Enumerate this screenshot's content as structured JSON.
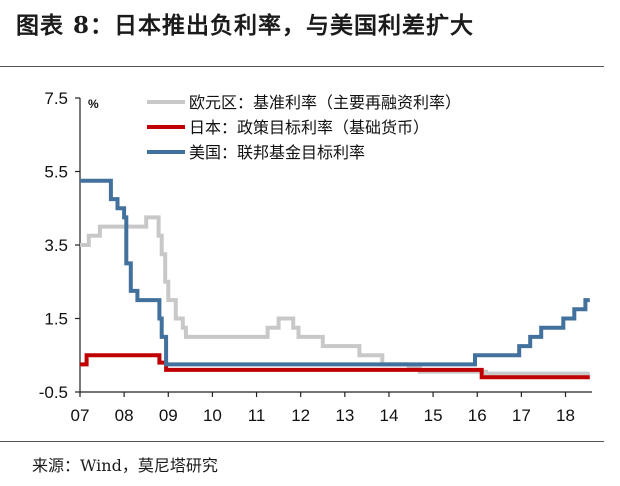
{
  "header": {
    "title": "图表 8：日本推出负利率，与美国利差扩大"
  },
  "footer": {
    "source": "来源：Wind，莫尼塔研究"
  },
  "chart_data": {
    "type": "line",
    "unit": "%",
    "ylim": [
      -0.5,
      7.5
    ],
    "yticks": [
      "7.5",
      "5.5",
      "3.5",
      "1.5",
      "-0.5"
    ],
    "yticks_values": [
      7.5,
      5.5,
      3.5,
      1.5,
      -0.5
    ],
    "xlim": [
      2007,
      2018.6
    ],
    "xticks": [
      "07",
      "08",
      "09",
      "10",
      "11",
      "12",
      "13",
      "14",
      "15",
      "16",
      "17",
      "18"
    ],
    "xticks_values": [
      2007,
      2008,
      2009,
      2010,
      2011,
      2012,
      2013,
      2014,
      2015,
      2016,
      2017,
      2018
    ],
    "legend_position": "top-right",
    "grid": false,
    "series": [
      {
        "name": "欧元区：基准利率（主要再融资利率）",
        "color": "#c8c8c8",
        "step": true,
        "points": [
          [
            2007.0,
            3.5
          ],
          [
            2007.2,
            3.75
          ],
          [
            2007.45,
            4.0
          ],
          [
            2008.5,
            4.25
          ],
          [
            2008.78,
            3.75
          ],
          [
            2008.85,
            3.25
          ],
          [
            2008.93,
            2.5
          ],
          [
            2009.0,
            2.0
          ],
          [
            2009.17,
            1.5
          ],
          [
            2009.33,
            1.25
          ],
          [
            2009.4,
            1.0
          ],
          [
            2011.25,
            1.25
          ],
          [
            2011.5,
            1.5
          ],
          [
            2011.83,
            1.25
          ],
          [
            2011.95,
            1.0
          ],
          [
            2012.5,
            0.75
          ],
          [
            2013.33,
            0.5
          ],
          [
            2013.85,
            0.25
          ],
          [
            2014.45,
            0.15
          ],
          [
            2014.7,
            0.05
          ],
          [
            2016.2,
            0.0
          ],
          [
            2018.55,
            0.0
          ]
        ]
      },
      {
        "name": "日本：政策目标利率（基础货币）",
        "color": "#c00000",
        "step": true,
        "points": [
          [
            2007.0,
            0.25
          ],
          [
            2007.15,
            0.5
          ],
          [
            2008.8,
            0.3
          ],
          [
            2008.95,
            0.1
          ],
          [
            2016.1,
            -0.1
          ],
          [
            2018.55,
            -0.1
          ]
        ]
      },
      {
        "name": "美国：联邦基金目标利率",
        "color": "#41719c",
        "step": true,
        "points": [
          [
            2007.0,
            5.25
          ],
          [
            2007.7,
            4.75
          ],
          [
            2007.85,
            4.5
          ],
          [
            2008.0,
            4.25
          ],
          [
            2008.05,
            3.0
          ],
          [
            2008.15,
            2.25
          ],
          [
            2008.3,
            2.0
          ],
          [
            2008.8,
            1.5
          ],
          [
            2008.85,
            1.0
          ],
          [
            2008.95,
            0.25
          ],
          [
            2015.95,
            0.5
          ],
          [
            2016.95,
            0.75
          ],
          [
            2017.2,
            1.0
          ],
          [
            2017.45,
            1.25
          ],
          [
            2017.95,
            1.5
          ],
          [
            2018.2,
            1.75
          ],
          [
            2018.45,
            2.0
          ],
          [
            2018.55,
            2.0
          ]
        ]
      }
    ]
  }
}
